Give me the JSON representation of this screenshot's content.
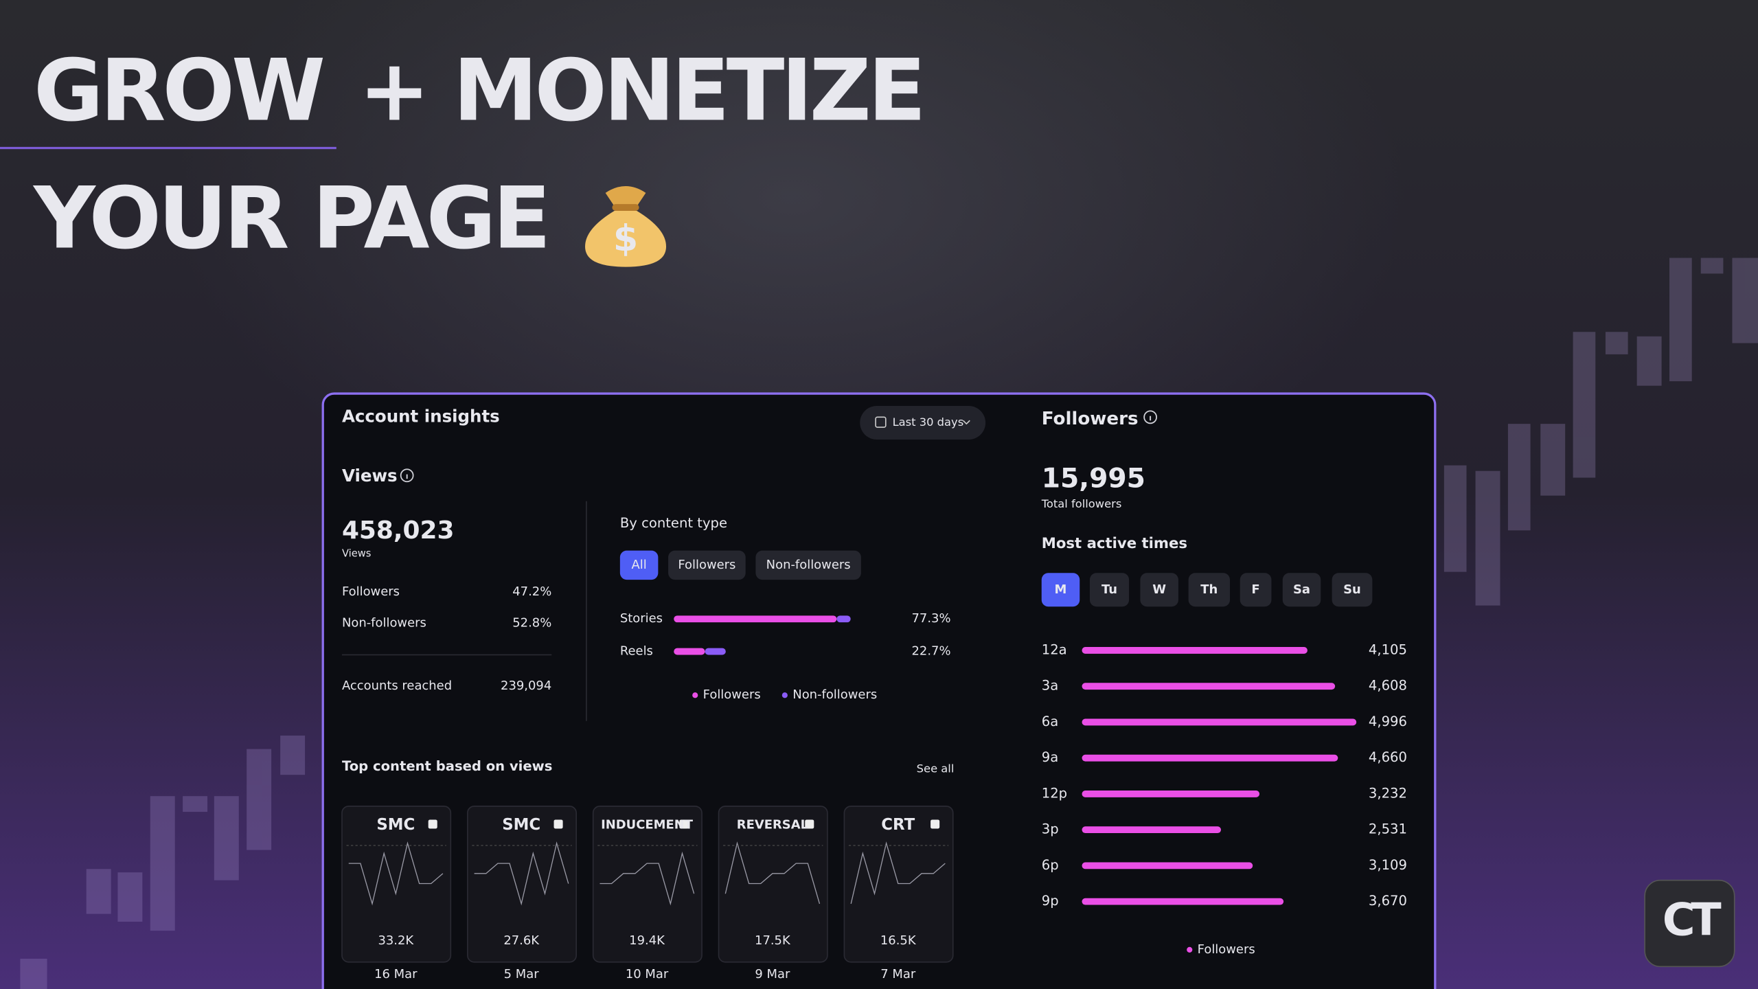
{
  "headline": {
    "accent": "GROW",
    "rest": "+ MONETIZE",
    "line2": "YOUR PAGE"
  },
  "panel": {
    "title": "Account insights",
    "date_range": "Last 30 days",
    "views": {
      "heading": "Views",
      "total": "458,023",
      "total_caption": "Views",
      "rows": [
        [
          "Followers",
          "47.2%"
        ],
        [
          "Non-followers",
          "52.8%"
        ]
      ],
      "reached": [
        "Accounts reached",
        "239,094"
      ]
    },
    "content_type": {
      "heading": "By content type",
      "filters": [
        "All",
        "Followers",
        "Non-followers"
      ],
      "categories": [
        "Stories",
        "Reels"
      ],
      "values": [
        77.3,
        22.7
      ],
      "value_labels": [
        "77.3%",
        "22.7%"
      ],
      "xlim": [
        0,
        100
      ],
      "series": [
        {
          "name": "Followers",
          "color": "#ea4fe6",
          "values": [
            71.2,
            13.6
          ]
        },
        {
          "name": "Non-followers",
          "color": "#8b5cf6",
          "values": [
            6.1,
            9.1
          ]
        }
      ]
    },
    "top_content": {
      "heading": "Top content based on views",
      "see_all": "See all",
      "items": [
        {
          "title": "SMC",
          "views": "33.2K",
          "date": "16 Mar"
        },
        {
          "title": "SMC",
          "views": "27.6K",
          "date": "5 Mar"
        },
        {
          "title": "INDUCEMENT",
          "views": "19.4K",
          "date": "10 Mar"
        },
        {
          "title": "REVERSAL",
          "views": "17.5K",
          "date": "9 Mar"
        },
        {
          "title": "CRT",
          "views": "16.5K",
          "date": "7 Mar"
        }
      ]
    },
    "followers": {
      "heading": "Followers",
      "total": "15,995",
      "total_caption": "Total followers",
      "active_heading": "Most active times",
      "days": [
        "M",
        "Tu",
        "W",
        "Th",
        "F",
        "Sa",
        "Su"
      ],
      "chart": {
        "type": "bar",
        "categories": [
          "12a",
          "3a",
          "6a",
          "9a",
          "12p",
          "3p",
          "6p",
          "9p"
        ],
        "values": [
          4105,
          4608,
          4996,
          4660,
          3232,
          2531,
          3109,
          3670
        ],
        "value_labels": [
          "4,105",
          "4,608",
          "4,996",
          "4,660",
          "3,232",
          "2,531",
          "3,109",
          "3,670"
        ],
        "xlim": [
          0,
          5000
        ],
        "color": "#ea4fe6",
        "series_name": "Followers"
      }
    }
  },
  "logo": "CT"
}
